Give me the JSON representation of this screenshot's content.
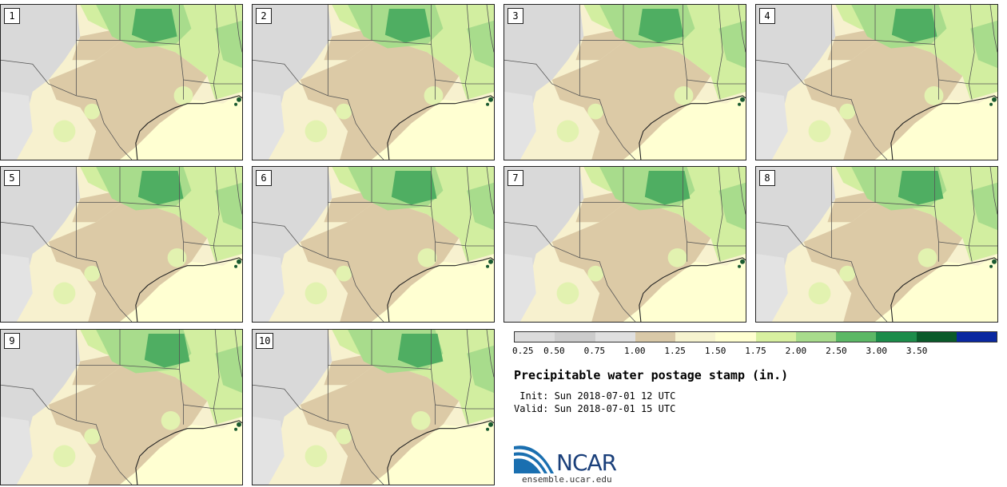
{
  "panels": [
    {
      "label": "1"
    },
    {
      "label": "2"
    },
    {
      "label": "3"
    },
    {
      "label": "4"
    },
    {
      "label": "5"
    },
    {
      "label": "6"
    },
    {
      "label": "7"
    },
    {
      "label": "8"
    },
    {
      "label": "9"
    },
    {
      "label": "10"
    }
  ],
  "colorbar": {
    "ticks": [
      "0.25",
      "0.50",
      "0.75",
      "1.00",
      "1.25",
      "1.50",
      "1.75",
      "2.00",
      "2.50",
      "3.00",
      "3.50"
    ],
    "colors": [
      "#dcdcdc",
      "#cccccc",
      "#e0e0e0",
      "#d9c9a8",
      "#f6f3cf",
      "#ffffd0",
      "#d8f0a0",
      "#a8dc8c",
      "#5cb866",
      "#1c8c4a",
      "#0a5a2a",
      "#0a28a0"
    ]
  },
  "title": "Precipitable water postage stamp (in.)",
  "init": " Init: Sun 2018-07-01 12 UTC",
  "valid": "Valid: Sun 2018-07-01 15 UTC",
  "logo": {
    "text": "NCAR",
    "url": "ensemble.ucar.edu"
  }
}
